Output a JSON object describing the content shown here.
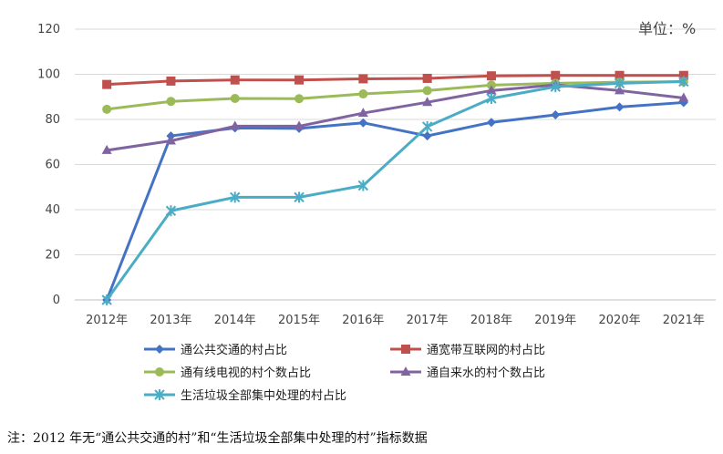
{
  "chart_data": {
    "type": "line",
    "unit_label": "单位：%",
    "x": [
      "2012年",
      "2013年",
      "2014年",
      "2015年",
      "2016年",
      "2017年",
      "2018年",
      "2019年",
      "2020年",
      "2021年"
    ],
    "ylim": [
      0,
      120
    ],
    "yticks": [
      0,
      20,
      40,
      60,
      80,
      100,
      120
    ],
    "grid": true,
    "legend_position": "bottom",
    "series": [
      {
        "name": "通公共交通的村占比",
        "color": "#4472C4",
        "marker": "diamond",
        "values": [
          0,
          72.7,
          76.2,
          76.0,
          78.5,
          72.7,
          78.7,
          82.0,
          85.5,
          87.5
        ]
      },
      {
        "name": "通宽带互联网的村占比",
        "color": "#C0504D",
        "marker": "square",
        "values": [
          95.5,
          97.0,
          97.5,
          97.5,
          98.0,
          98.2,
          99.3,
          99.5,
          99.5,
          99.5
        ]
      },
      {
        "name": "通有线电视的村个数占比",
        "color": "#9BBB59",
        "marker": "circle",
        "values": [
          84.5,
          88.0,
          89.3,
          89.2,
          91.3,
          92.8,
          95.2,
          96.0,
          96.5,
          96.7
        ]
      },
      {
        "name": "通自来水的村个数占比",
        "color": "#8064A2",
        "marker": "triangle",
        "values": [
          66.3,
          70.5,
          77.0,
          77.0,
          82.8,
          87.6,
          92.8,
          95.3,
          92.8,
          89.5
        ]
      },
      {
        "name": "生活垃圾全部集中处理的村占比",
        "color": "#4BACC6",
        "marker": "star",
        "values": [
          0,
          39.5,
          45.5,
          45.5,
          50.7,
          76.8,
          89.3,
          94.5,
          96.0,
          96.8
        ]
      }
    ]
  },
  "note": "注：2012 年无“通公共交通的村”和“生活垃圾全部集中处理的村”指标数据"
}
